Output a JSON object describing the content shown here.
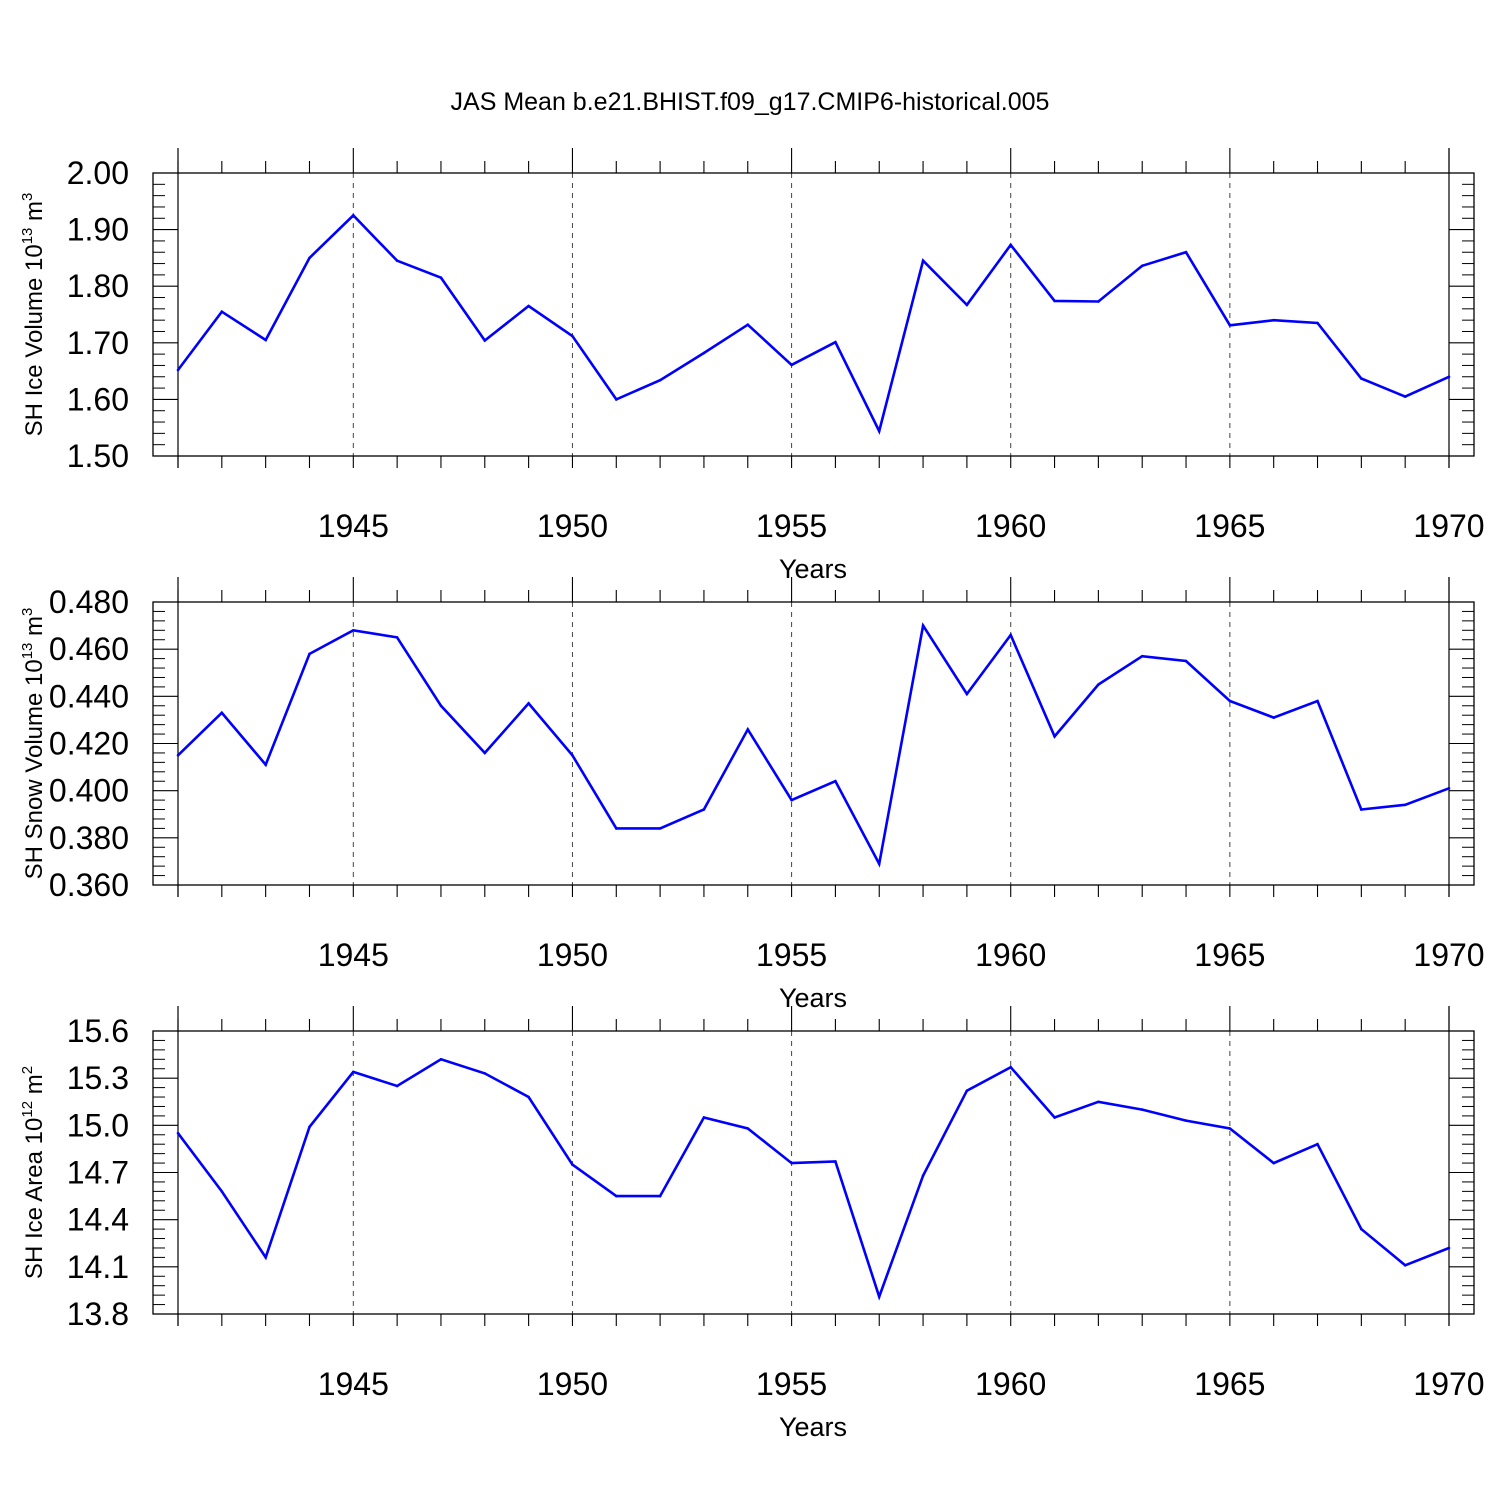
{
  "title": "JAS Mean b.e21.BHIST.f09_g17.CMIP6-historical.005",
  "colors": {
    "line": "#0000ff",
    "axis": "#000000",
    "grid": "#444444"
  },
  "chart_data": [
    {
      "type": "line",
      "ylabel": {
        "text": "SH Ice Volume 10",
        "exp": "13",
        "unit": " m",
        "unit_exp": "3"
      },
      "xlabel": "Years",
      "xlim": [
        1941,
        1970
      ],
      "ylim": [
        1.5,
        2.0
      ],
      "yticks": [
        1.5,
        1.6,
        1.7,
        1.8,
        1.9,
        2.0
      ],
      "ytick_labels": [
        "1.50",
        "1.60",
        "1.70",
        "1.80",
        "1.90",
        "2.00"
      ],
      "xticks": [
        1945,
        1950,
        1955,
        1960,
        1965,
        1970
      ],
      "xtick_labels": [
        "1945",
        "1950",
        "1955",
        "1960",
        "1965",
        "1970"
      ],
      "grid": "vertical dashed at major x ticks",
      "x": [
        1941,
        1942,
        1943,
        1944,
        1945,
        1946,
        1947,
        1948,
        1949,
        1950,
        1951,
        1952,
        1953,
        1954,
        1955,
        1956,
        1957,
        1958,
        1959,
        1960,
        1961,
        1962,
        1963,
        1964,
        1965,
        1966,
        1967,
        1968,
        1969,
        1970
      ],
      "values": [
        1.652,
        1.755,
        1.705,
        1.85,
        1.925,
        1.845,
        1.815,
        1.704,
        1.765,
        1.712,
        1.6,
        1.634,
        1.682,
        1.732,
        1.661,
        1.701,
        1.544,
        1.845,
        1.767,
        1.873,
        1.774,
        1.773,
        1.836,
        1.86,
        1.731,
        1.74,
        1.735,
        1.637,
        1.605,
        1.64
      ]
    },
    {
      "type": "line",
      "ylabel": {
        "text": "SH Snow Volume 10",
        "exp": "13",
        "unit": " m",
        "unit_exp": "3"
      },
      "xlabel": "Years",
      "xlim": [
        1941,
        1970
      ],
      "ylim": [
        0.36,
        0.48
      ],
      "yticks": [
        0.36,
        0.38,
        0.4,
        0.42,
        0.44,
        0.46,
        0.48
      ],
      "ytick_labels": [
        "0.360",
        "0.380",
        "0.400",
        "0.420",
        "0.440",
        "0.460",
        "0.480"
      ],
      "xticks": [
        1945,
        1950,
        1955,
        1960,
        1965,
        1970
      ],
      "xtick_labels": [
        "1945",
        "1950",
        "1955",
        "1960",
        "1965",
        "1970"
      ],
      "grid": "vertical dashed at major x ticks",
      "x": [
        1941,
        1942,
        1943,
        1944,
        1945,
        1946,
        1947,
        1948,
        1949,
        1950,
        1951,
        1952,
        1953,
        1954,
        1955,
        1956,
        1957,
        1958,
        1959,
        1960,
        1961,
        1962,
        1963,
        1964,
        1965,
        1966,
        1967,
        1968,
        1969,
        1970
      ],
      "values": [
        0.415,
        0.433,
        0.411,
        0.458,
        0.468,
        0.465,
        0.436,
        0.416,
        0.437,
        0.415,
        0.384,
        0.384,
        0.392,
        0.426,
        0.396,
        0.404,
        0.369,
        0.47,
        0.441,
        0.466,
        0.423,
        0.445,
        0.457,
        0.455,
        0.438,
        0.431,
        0.438,
        0.392,
        0.394,
        0.401
      ]
    },
    {
      "type": "line",
      "ylabel": {
        "text": "SH Ice Area 10",
        "exp": "12",
        "unit": " m",
        "unit_exp": "2"
      },
      "xlabel": "Years",
      "xlim": [
        1941,
        1970
      ],
      "ylim": [
        13.8,
        15.6
      ],
      "yticks": [
        13.8,
        14.1,
        14.4,
        14.7,
        15.0,
        15.3,
        15.6
      ],
      "ytick_labels": [
        "13.8",
        "14.1",
        "14.4",
        "14.7",
        "15.0",
        "15.3",
        "15.6"
      ],
      "xticks": [
        1945,
        1950,
        1955,
        1960,
        1965,
        1970
      ],
      "xtick_labels": [
        "1945",
        "1950",
        "1955",
        "1960",
        "1965",
        "1970"
      ],
      "grid": "vertical dashed at major x ticks",
      "x": [
        1941,
        1942,
        1943,
        1944,
        1945,
        1946,
        1947,
        1948,
        1949,
        1950,
        1951,
        1952,
        1953,
        1954,
        1955,
        1956,
        1957,
        1958,
        1959,
        1960,
        1961,
        1962,
        1963,
        1964,
        1965,
        1966,
        1967,
        1968,
        1969,
        1970
      ],
      "values": [
        14.95,
        14.58,
        14.16,
        14.99,
        15.34,
        15.25,
        15.42,
        15.33,
        15.18,
        14.75,
        14.55,
        14.55,
        15.05,
        14.98,
        14.76,
        14.77,
        13.91,
        14.68,
        15.22,
        15.37,
        15.05,
        15.15,
        15.1,
        15.03,
        14.98,
        14.76,
        14.88,
        14.34,
        14.11,
        14.22
      ]
    }
  ]
}
